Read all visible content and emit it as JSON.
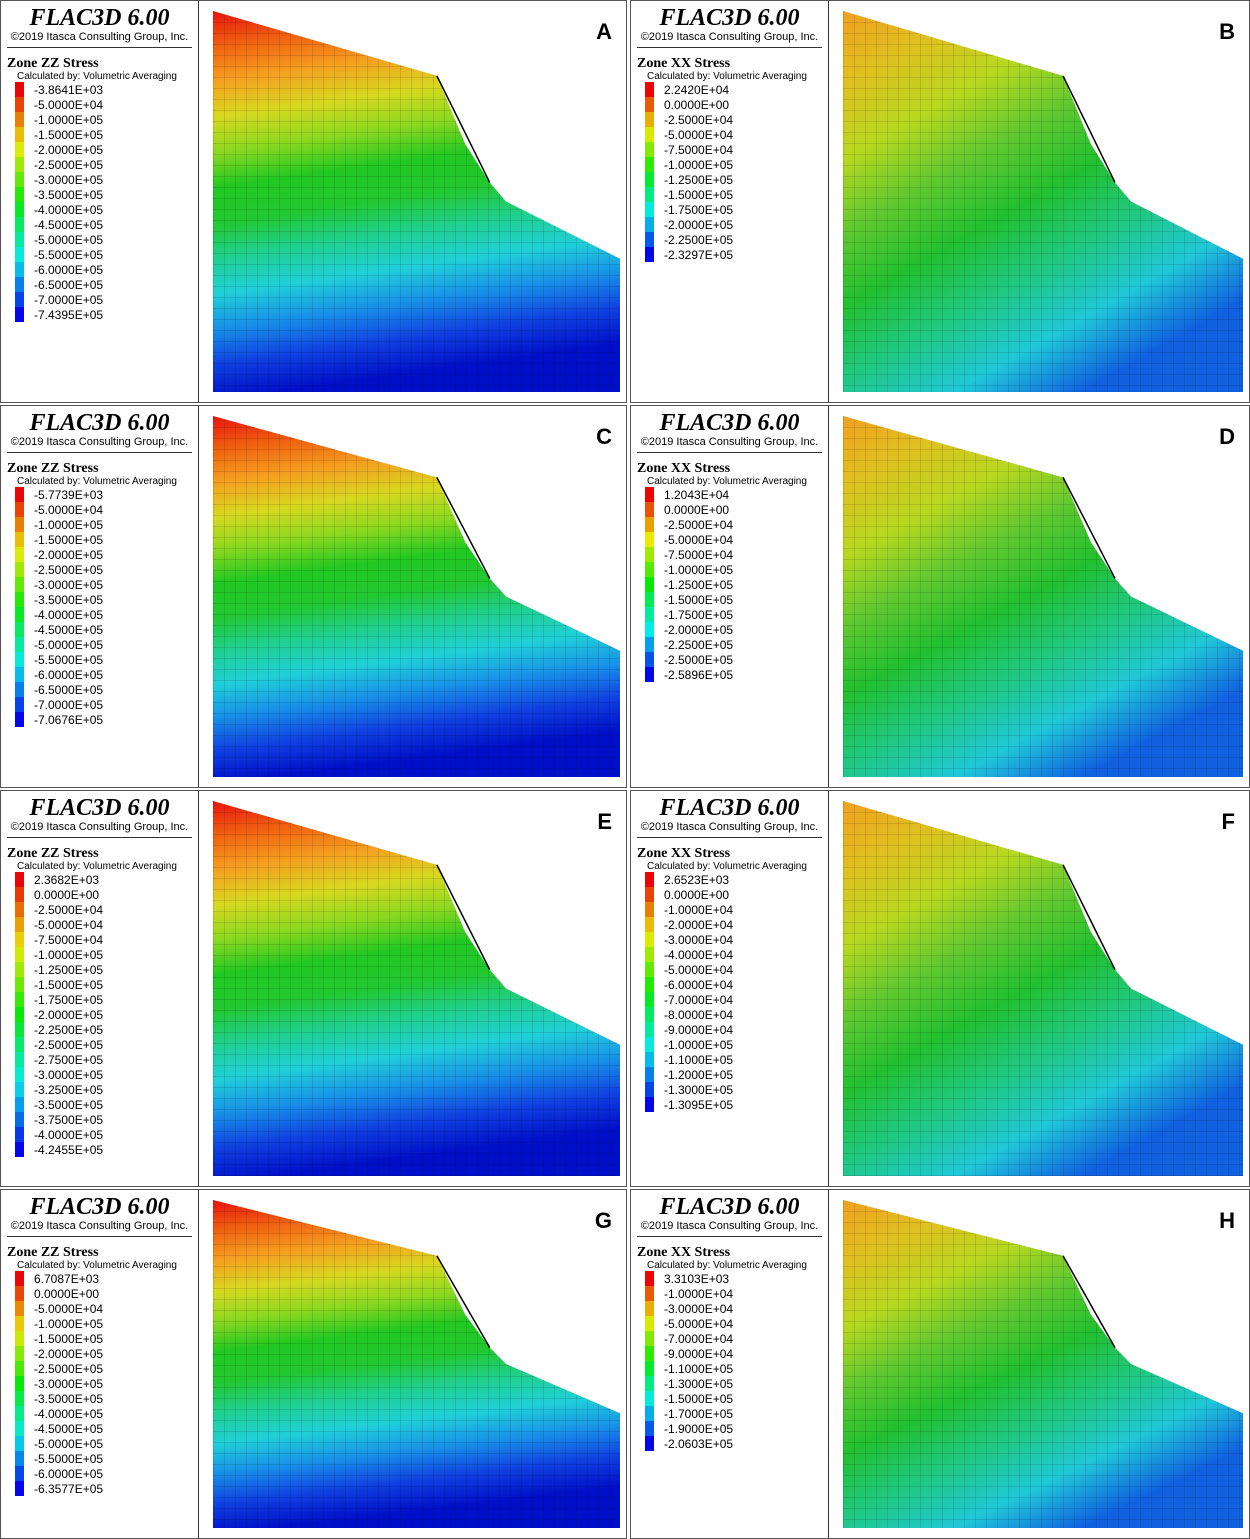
{
  "panels": [
    {
      "label": "A",
      "title": "FLAC3D 6.00",
      "copyright": "©2019 Itasca Consulting Group, Inc.",
      "quantity": "Zone ZZ Stress",
      "method": "Calculated by: Volumetric Averaging",
      "legend": [
        "-3.8641E+03",
        "-5.0000E+04",
        "-1.0000E+05",
        "-1.5000E+05",
        "-2.0000E+05",
        "-2.5000E+05",
        "-3.0000E+05",
        "-3.5000E+05",
        "-4.0000E+05",
        "-4.5000E+05",
        "-5.0000E+05",
        "-5.5000E+05",
        "-6.0000E+05",
        "-6.5000E+05",
        "-7.0000E+05",
        "-7.4395E+05"
      ]
    },
    {
      "label": "B",
      "title": "FLAC3D 6.00",
      "copyright": "©2019 Itasca Consulting Group, Inc.",
      "quantity": "Zone XX Stress",
      "method": "Calculated by: Volumetric Averaging",
      "legend": [
        "2.2420E+04",
        "0.0000E+00",
        "-2.5000E+04",
        "-5.0000E+04",
        "-7.5000E+04",
        "-1.0000E+05",
        "-1.2500E+05",
        "-1.5000E+05",
        "-1.7500E+05",
        "-2.0000E+05",
        "-2.2500E+05",
        "-2.3297E+05"
      ]
    },
    {
      "label": "C",
      "title": "FLAC3D 6.00",
      "copyright": "©2019 Itasca Consulting Group, Inc.",
      "quantity": "Zone ZZ Stress",
      "method": "Calculated by: Volumetric Averaging",
      "legend": [
        "-5.7739E+03",
        "-5.0000E+04",
        "-1.0000E+05",
        "-1.5000E+05",
        "-2.0000E+05",
        "-2.5000E+05",
        "-3.0000E+05",
        "-3.5000E+05",
        "-4.0000E+05",
        "-4.5000E+05",
        "-5.0000E+05",
        "-5.5000E+05",
        "-6.0000E+05",
        "-6.5000E+05",
        "-7.0000E+05",
        "-7.0676E+05"
      ]
    },
    {
      "label": "D",
      "title": "FLAC3D 6.00",
      "copyright": "©2019 Itasca Consulting Group, Inc.",
      "quantity": "Zone XX Stress",
      "method": "Calculated by: Volumetric Averaging",
      "legend": [
        "1.2043E+04",
        "0.0000E+00",
        "-2.5000E+04",
        "-5.0000E+04",
        "-7.5000E+04",
        "-1.0000E+05",
        "-1.2500E+05",
        "-1.5000E+05",
        "-1.7500E+05",
        "-2.0000E+05",
        "-2.2500E+05",
        "-2.5000E+05",
        "-2.5896E+05"
      ]
    },
    {
      "label": "E",
      "title": "FLAC3D 6.00",
      "copyright": "©2019 Itasca Consulting Group, Inc.",
      "quantity": "Zone ZZ Stress",
      "method": "Calculated by: Volumetric Averaging",
      "legend": [
        "2.3682E+03",
        "0.0000E+00",
        "-2.5000E+04",
        "-5.0000E+04",
        "-7.5000E+04",
        "-1.0000E+05",
        "-1.2500E+05",
        "-1.5000E+05",
        "-1.7500E+05",
        "-2.0000E+05",
        "-2.2500E+05",
        "-2.5000E+05",
        "-2.7500E+05",
        "-3.0000E+05",
        "-3.2500E+05",
        "-3.5000E+05",
        "-3.7500E+05",
        "-4.0000E+05",
        "-4.2455E+05"
      ]
    },
    {
      "label": "F",
      "title": "FLAC3D 6.00",
      "copyright": "©2019 Itasca Consulting Group, Inc.",
      "quantity": "Zone XX Stress",
      "method": "Calculated by: Volumetric Averaging",
      "legend": [
        "2.6523E+03",
        "0.0000E+00",
        "-1.0000E+04",
        "-2.0000E+04",
        "-3.0000E+04",
        "-4.0000E+04",
        "-5.0000E+04",
        "-6.0000E+04",
        "-7.0000E+04",
        "-8.0000E+04",
        "-9.0000E+04",
        "-1.0000E+05",
        "-1.1000E+05",
        "-1.2000E+05",
        "-1.3000E+05",
        "-1.3095E+05"
      ]
    },
    {
      "label": "G",
      "title": "FLAC3D 6.00",
      "copyright": "©2019 Itasca Consulting Group, Inc.",
      "quantity": "Zone ZZ Stress",
      "method": "Calculated by: Volumetric Averaging",
      "legend": [
        "6.7087E+03",
        "0.0000E+00",
        "-5.0000E+04",
        "-1.0000E+05",
        "-1.5000E+05",
        "-2.0000E+05",
        "-2.5000E+05",
        "-3.0000E+05",
        "-3.5000E+05",
        "-4.0000E+05",
        "-4.5000E+05",
        "-5.0000E+05",
        "-5.5000E+05",
        "-6.0000E+05",
        "-6.3577E+05"
      ]
    },
    {
      "label": "H",
      "title": "FLAC3D 6.00",
      "copyright": "©2019 Itasca Consulting Group, Inc.",
      "quantity": "Zone XX Stress",
      "method": "Calculated by: Volumetric Averaging",
      "legend": [
        "3.3103E+03",
        "-1.0000E+04",
        "-3.0000E+04",
        "-5.0000E+04",
        "-7.0000E+04",
        "-9.0000E+04",
        "-1.1000E+05",
        "-1.3000E+05",
        "-1.5000E+05",
        "-1.7000E+05",
        "-1.9000E+05",
        "-2.0603E+05"
      ]
    }
  ]
}
